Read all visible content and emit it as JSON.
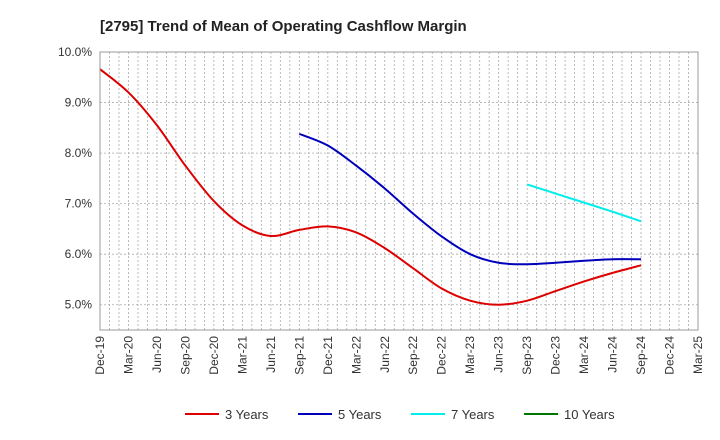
{
  "chart_data": {
    "type": "line",
    "title": "[2795]  Trend of Mean of Operating Cashflow Margin",
    "xlabel": "",
    "ylabel": "",
    "x": [
      "Dec-19",
      "Mar-20",
      "Jun-20",
      "Sep-20",
      "Dec-20",
      "Mar-21",
      "Jun-21",
      "Sep-21",
      "Dec-21",
      "Mar-22",
      "Jun-22",
      "Sep-22",
      "Dec-22",
      "Mar-23",
      "Jun-23",
      "Sep-23",
      "Dec-23",
      "Mar-24",
      "Jun-24",
      "Sep-24",
      "Dec-24",
      "Mar-25"
    ],
    "ylim": [
      4.5,
      10.0
    ],
    "yticks": [
      5.0,
      6.0,
      7.0,
      8.0,
      9.0,
      10.0
    ],
    "ytick_labels": [
      "5.0%",
      "6.0%",
      "7.0%",
      "8.0%",
      "9.0%",
      "10.0%"
    ],
    "grid": true,
    "legend_position": "bottom",
    "series": [
      {
        "name": "3 Years",
        "color": "#dd0000",
        "values": [
          9.66,
          9.2,
          8.55,
          7.75,
          7.05,
          6.57,
          6.36,
          6.48,
          6.55,
          6.43,
          6.12,
          5.72,
          5.32,
          5.08,
          5.0,
          5.08,
          5.27,
          5.46,
          5.63,
          5.78,
          null,
          null
        ]
      },
      {
        "name": "5 Years",
        "color": "#0000bb",
        "values": [
          null,
          null,
          null,
          null,
          null,
          null,
          null,
          8.38,
          8.15,
          7.75,
          7.3,
          6.8,
          6.35,
          6.0,
          5.83,
          5.8,
          5.83,
          5.87,
          5.9,
          5.9,
          null,
          null
        ]
      },
      {
        "name": "7 Years",
        "color": "#00eeee",
        "values": [
          null,
          null,
          null,
          null,
          null,
          null,
          null,
          null,
          null,
          null,
          null,
          null,
          null,
          null,
          null,
          7.38,
          7.2,
          7.02,
          6.84,
          6.65,
          null,
          null
        ]
      },
      {
        "name": "10 Years",
        "color": "#007700",
        "values": [
          null,
          null,
          null,
          null,
          null,
          null,
          null,
          null,
          null,
          null,
          null,
          null,
          null,
          null,
          null,
          null,
          null,
          null,
          null,
          null,
          null,
          null
        ]
      }
    ]
  }
}
